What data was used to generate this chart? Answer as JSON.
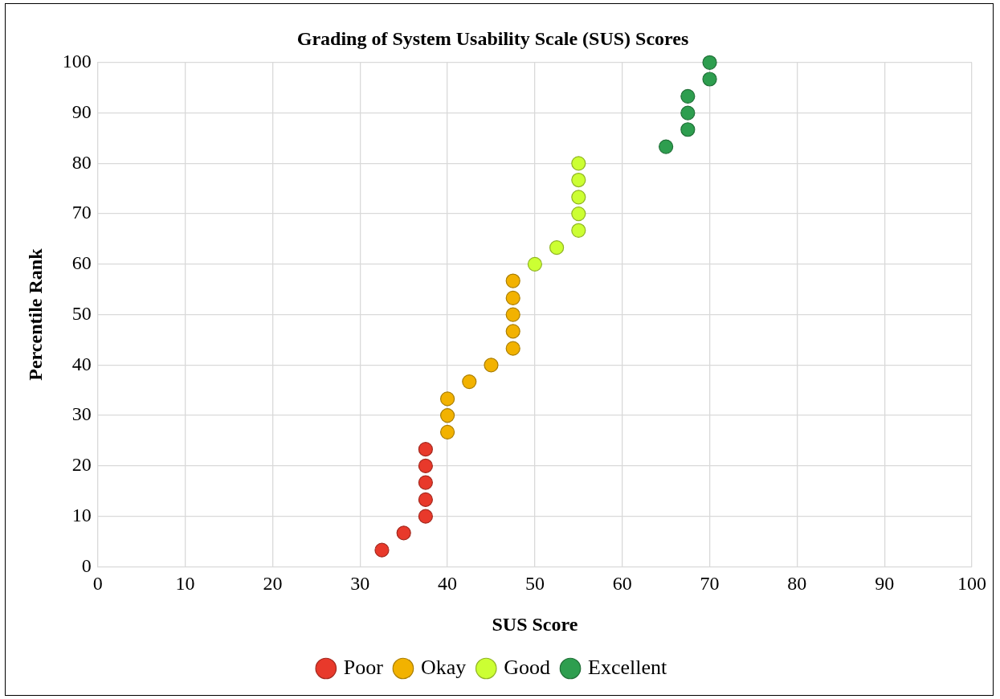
{
  "chart_data": {
    "type": "scatter",
    "title": "Grading of System Usability Scale (SUS) Scores",
    "xlabel": "SUS Score",
    "ylabel": "Percentile Rank",
    "xlim": [
      0,
      100
    ],
    "xticks": [
      0,
      10,
      20,
      30,
      40,
      50,
      60,
      70,
      80,
      90,
      100
    ],
    "ylim": [
      0,
      100
    ],
    "yticks": [
      0,
      10,
      20,
      30,
      40,
      50,
      60,
      70,
      80,
      90,
      100
    ],
    "grid": true,
    "legend": "bottom",
    "marker": "circle",
    "series": [
      {
        "name": "Poor",
        "color": "#e8392b",
        "x": [
          32.5,
          35,
          37.5,
          37.5,
          37.5,
          37.5,
          37.5
        ],
        "values": [
          3.3,
          6.7,
          10,
          13.3,
          16.7,
          20,
          23.3
        ]
      },
      {
        "name": "Okay",
        "color": "#f2b200",
        "x": [
          40,
          40,
          40,
          42.5,
          45,
          47.5,
          47.5,
          47.5,
          47.5,
          47.5
        ],
        "values": [
          26.7,
          30,
          33.3,
          36.7,
          40,
          43.3,
          46.7,
          50,
          53.3,
          56.7
        ]
      },
      {
        "name": "Good",
        "color": "#ccff33",
        "x": [
          50,
          52.5,
          55,
          55,
          55,
          55,
          55
        ],
        "values": [
          60,
          63.3,
          66.7,
          70,
          73.3,
          76.7,
          80
        ]
      },
      {
        "name": "Excellent",
        "color": "#2e9e4f",
        "x": [
          65,
          67.5,
          67.5,
          67.5,
          70,
          70
        ],
        "values": [
          83.3,
          86.7,
          90,
          93.3,
          96.7,
          100
        ]
      }
    ]
  }
}
